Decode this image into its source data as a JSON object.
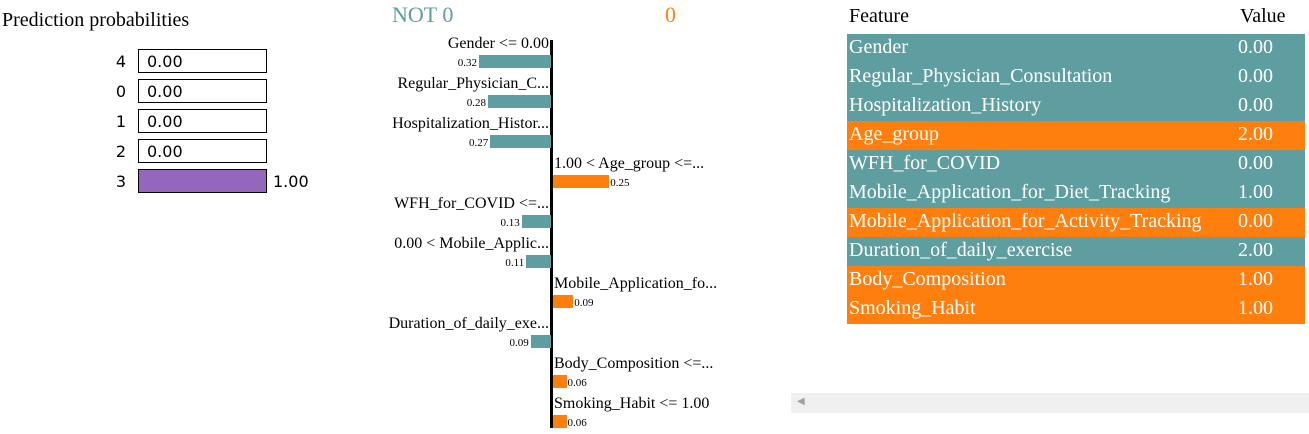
{
  "colors": {
    "negative": "#5f9ea0",
    "positive": "#ff7f0e",
    "probability": "#9467bd"
  },
  "prediction_probabilities": {
    "title": "Prediction probabilities",
    "rows": [
      {
        "label": "4",
        "value": 0.0,
        "text": "0.00"
      },
      {
        "label": "0",
        "value": 0.0,
        "text": "0.00"
      },
      {
        "label": "1",
        "value": 0.0,
        "text": "0.00"
      },
      {
        "label": "2",
        "value": 0.0,
        "text": "0.00"
      },
      {
        "label": "3",
        "value": 1.0,
        "text": "1.00"
      }
    ]
  },
  "explanation": {
    "negative_class": "NOT 0",
    "positive_class": "0"
  },
  "chart_data": {
    "type": "bar",
    "orientation": "horizontal",
    "categories": [
      "Gender <= 0.00",
      "Regular_Physician_C...",
      "Hospitalization_Histor...",
      "1.00 < Age_group <=...",
      "WFH_for_COVID <=...",
      "0.00 < Mobile_Applic...",
      "Mobile_Application_fo...",
      "Duration_of_daily_exe...",
      "Body_Composition <=...",
      "Smoking_Habit <= 1.00"
    ],
    "values": [
      -0.32,
      -0.28,
      -0.27,
      0.25,
      -0.13,
      -0.11,
      0.09,
      -0.09,
      0.06,
      0.06
    ],
    "value_labels": [
      "0.32",
      "0.28",
      "0.27",
      "0.25",
      "0.13",
      "0.11",
      "0.09",
      "0.09",
      "0.06",
      "0.06"
    ],
    "xlim": [
      -0.32,
      0.32
    ]
  },
  "table": {
    "headers": {
      "feature": "Feature",
      "value": "Value"
    },
    "rows": [
      {
        "feature": "Gender",
        "value": "0.00",
        "sign": "negative"
      },
      {
        "feature": "Regular_Physician_Consultation",
        "value": "0.00",
        "sign": "negative"
      },
      {
        "feature": "Hospitalization_History",
        "value": "0.00",
        "sign": "negative"
      },
      {
        "feature": "Age_group",
        "value": "2.00",
        "sign": "positive"
      },
      {
        "feature": "WFH_for_COVID",
        "value": "0.00",
        "sign": "negative"
      },
      {
        "feature": "Mobile_Application_for_Diet_Tracking",
        "value": "1.00",
        "sign": "negative"
      },
      {
        "feature": "Mobile_Application_for_Activity_Tracking",
        "value": "0.00",
        "sign": "positive"
      },
      {
        "feature": "Duration_of_daily_exercise",
        "value": "2.00",
        "sign": "negative"
      },
      {
        "feature": "Body_Composition",
        "value": "1.00",
        "sign": "positive"
      },
      {
        "feature": "Smoking_Habit",
        "value": "1.00",
        "sign": "positive"
      }
    ]
  },
  "scrollbar": {
    "left_arrow": "◀"
  }
}
